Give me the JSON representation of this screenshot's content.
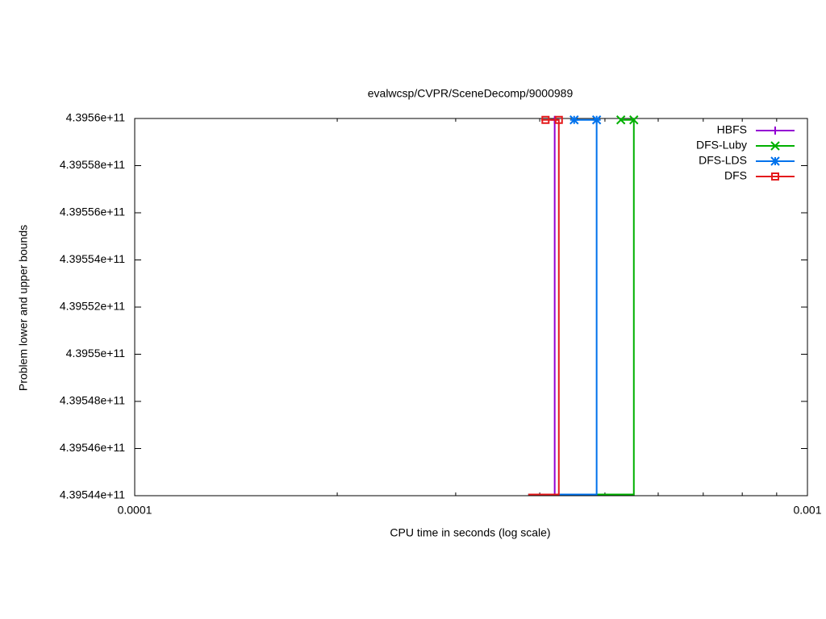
{
  "chart_data": {
    "type": "line",
    "title": "evalwcsp/CVPR/SceneDecomp/9000989",
    "x_label": "CPU time in seconds (log scale)",
    "y_label": "Problem lower and upper bounds",
    "x_log_scale": true,
    "xlim": [
      0.0001,
      0.001
    ],
    "xticks": [
      0.0001,
      0.001
    ],
    "xminor_ticks": [
      0.0002,
      0.0003,
      0.0004,
      0.0005,
      0.0006,
      0.0007,
      0.0008,
      0.0009
    ],
    "ylim": [
      439544000000,
      439560000000
    ],
    "yticks": [
      {
        "value": 439544000000,
        "label": "4.39544e+11"
      },
      {
        "value": 439546000000,
        "label": "4.39546e+11"
      },
      {
        "value": 439548000000,
        "label": "4.39548e+11"
      },
      {
        "value": 439550000000,
        "label": "4.3955e+11"
      },
      {
        "value": 439552000000,
        "label": "4.39552e+11"
      },
      {
        "value": 439554000000,
        "label": "4.39554e+11"
      },
      {
        "value": 439556000000,
        "label": "4.39556e+11"
      },
      {
        "value": 439558000000,
        "label": "4.39558e+11"
      },
      {
        "value": 439560000000,
        "label": "4.3956e+11"
      }
    ],
    "legend": "top-right",
    "series": [
      {
        "name": "HBFS",
        "color": "#9400d3",
        "marker": "plus",
        "x": [
          0.0003846,
          0.000421,
          0.000421
        ],
        "values": [
          439544050000,
          439544050000,
          439559940000
        ],
        "marker_x": [
          0.000421
        ],
        "marker_values": [
          439559940000
        ]
      },
      {
        "name": "DFS-Luby",
        "color": "#00b000",
        "marker": "cross",
        "x": [
          0.0003846,
          0.000552,
          0.000552,
          0.000528
        ],
        "values": [
          439544050000,
          439544050000,
          439559940000,
          439559940000
        ],
        "marker_x": [
          0.000528,
          0.000552
        ],
        "marker_values": [
          439559940000,
          439559940000
        ]
      },
      {
        "name": "DFS-LDS",
        "color": "#0072ec",
        "marker": "star",
        "x": [
          0.0003846,
          0.000486,
          0.000486,
          0.00045
        ],
        "values": [
          439544050000,
          439544050000,
          439559940000,
          439559940000
        ],
        "marker_x": [
          0.00045,
          0.000486
        ],
        "marker_values": [
          439559940000,
          439559940000
        ]
      },
      {
        "name": "DFS",
        "color": "#e41a1c",
        "marker": "square",
        "x": [
          0.0003846,
          0.000427,
          0.000427,
          0.000402
        ],
        "values": [
          439544050000,
          439544050000,
          439559940000,
          439559940000
        ],
        "marker_x": [
          0.000408,
          0.000427
        ],
        "marker_values": [
          439559940000,
          439559940000
        ]
      }
    ]
  }
}
